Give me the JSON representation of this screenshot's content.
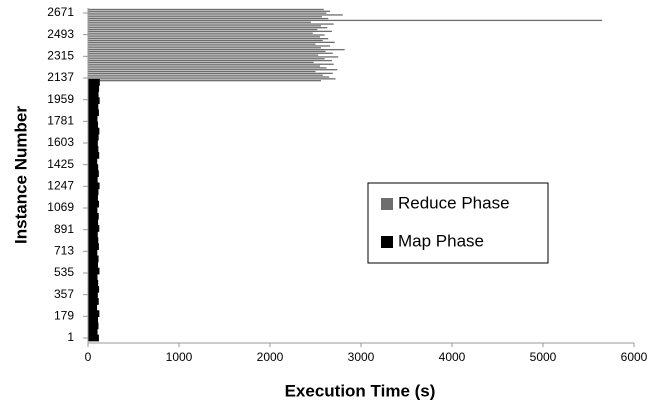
{
  "chart_data": {
    "type": "hbar",
    "xlabel": "Execution Time (s)",
    "ylabel": "Instance Number",
    "xlim": [
      0,
      6000
    ],
    "xticks": [
      0,
      1000,
      2000,
      3000,
      4000,
      5000,
      6000
    ],
    "ylim": [
      -40,
      2712
    ],
    "yticks": [
      1,
      179,
      357,
      535,
      713,
      891,
      1069,
      1247,
      1425,
      1603,
      1781,
      1959,
      2137,
      2315,
      2493,
      2671
    ],
    "legend": "center-right",
    "series": [
      {
        "name": "Reduce Phase",
        "color": "#6e6e6e",
        "x": [
          2115,
          2130,
          2145,
          2160,
          2175,
          2190,
          2205,
          2220,
          2235,
          2250,
          2265,
          2280,
          2295,
          2310,
          2325,
          2340,
          2355,
          2370,
          2385,
          2400,
          2415,
          2430,
          2445,
          2460,
          2475,
          2490,
          2505,
          2520,
          2535,
          2550,
          2565,
          2580,
          2595,
          2610,
          2625,
          2640,
          2655,
          2670,
          2685,
          2700
        ],
        "values": [
          2560,
          2720,
          2650,
          2580,
          2690,
          2500,
          2740,
          2620,
          2550,
          2700,
          2480,
          2680,
          2600,
          2750,
          2530,
          2690,
          2610,
          2820,
          2560,
          2660,
          2500,
          2710,
          2580,
          2640,
          2550,
          2600,
          2470,
          2680,
          2520,
          2630,
          2560,
          2700,
          2450,
          5650,
          2640,
          2570,
          2800,
          2620,
          2660,
          2590
        ]
      },
      {
        "name": "Map Phase",
        "color": "#000000",
        "x": [
          1,
          51,
          101,
          151,
          201,
          251,
          301,
          351,
          401,
          451,
          501,
          551,
          601,
          651,
          701,
          751,
          801,
          851,
          901,
          951,
          1001,
          1051,
          1101,
          1151,
          1201,
          1251,
          1301,
          1351,
          1401,
          1451,
          1501,
          1551,
          1601,
          1651,
          1701,
          1751,
          1801,
          1851,
          1901,
          1951,
          2001,
          2051,
          2101
        ],
        "values": [
          120,
          105,
          115,
          110,
          125,
          100,
          118,
          108,
          122,
          112,
          104,
          126,
          110,
          116,
          102,
          120,
          113,
          107,
          124,
          111,
          118,
          103,
          121,
          109,
          115,
          127,
          106,
          119,
          112,
          101,
          123,
          114,
          108,
          117,
          125,
          110,
          104,
          120,
          113,
          128,
          116,
          122,
          130
        ]
      }
    ]
  }
}
